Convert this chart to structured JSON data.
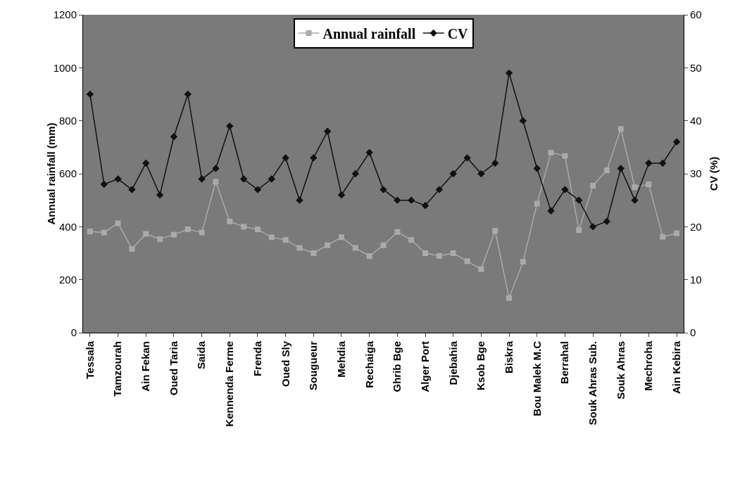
{
  "chart_data": {
    "type": "line",
    "categories": [
      "Tessala",
      null,
      "Tamzourah",
      null,
      "Ain Fekan",
      null,
      "Oued Taria",
      null,
      "Saida",
      null,
      "Kennenda Ferme",
      null,
      "Frenda",
      null,
      "Oued Sly",
      null,
      "Sougueur",
      null,
      "Mehdia",
      null,
      "Rechaiga",
      null,
      "Ghrib Bge",
      null,
      "Alger Port",
      null,
      "Djebahia",
      null,
      "Ksob Bge",
      null,
      "Biskra",
      null,
      "Bou Malek M.C",
      null,
      "Berrahal",
      null,
      "Souk Ahras Sub.",
      null,
      "Souk Ahras",
      null,
      "Mechroha",
      null,
      "Ain Kebira"
    ],
    "ylabel": "Annual rainfall (mm)",
    "y2label": "CV (%)",
    "ylim": [
      0,
      1200
    ],
    "yticks": [
      0,
      200,
      400,
      600,
      800,
      1000,
      1200
    ],
    "y2lim": [
      0,
      60
    ],
    "y2ticks": [
      0,
      10,
      20,
      30,
      40,
      50,
      60
    ],
    "legend": "top",
    "series": [
      {
        "name": "Annual rainfall",
        "color": "#aaaaaa",
        "marker": "square",
        "values": [
          382,
          378,
          413,
          316,
          373,
          353,
          370,
          390,
          378,
          570,
          420,
          400,
          390,
          360,
          350,
          320,
          300,
          330,
          360,
          320,
          289,
          330,
          380,
          350,
          300,
          290,
          300,
          270,
          240,
          385,
          131,
          268,
          487,
          680,
          667,
          387,
          555,
          613,
          769,
          549,
          560,
          362,
          375
        ]
      },
      {
        "name": "CV",
        "color": "#111111",
        "marker": "diamond",
        "axis": "y2",
        "values": [
          45,
          28,
          29,
          27,
          32,
          26,
          37,
          45,
          29,
          31,
          39,
          29,
          27,
          29,
          33,
          25,
          33,
          38,
          26,
          30,
          34,
          27,
          25,
          25,
          24,
          27,
          30,
          33,
          30,
          32,
          49,
          40,
          31,
          23,
          27,
          25,
          20,
          21,
          31,
          25,
          32,
          32,
          36
        ]
      }
    ]
  }
}
